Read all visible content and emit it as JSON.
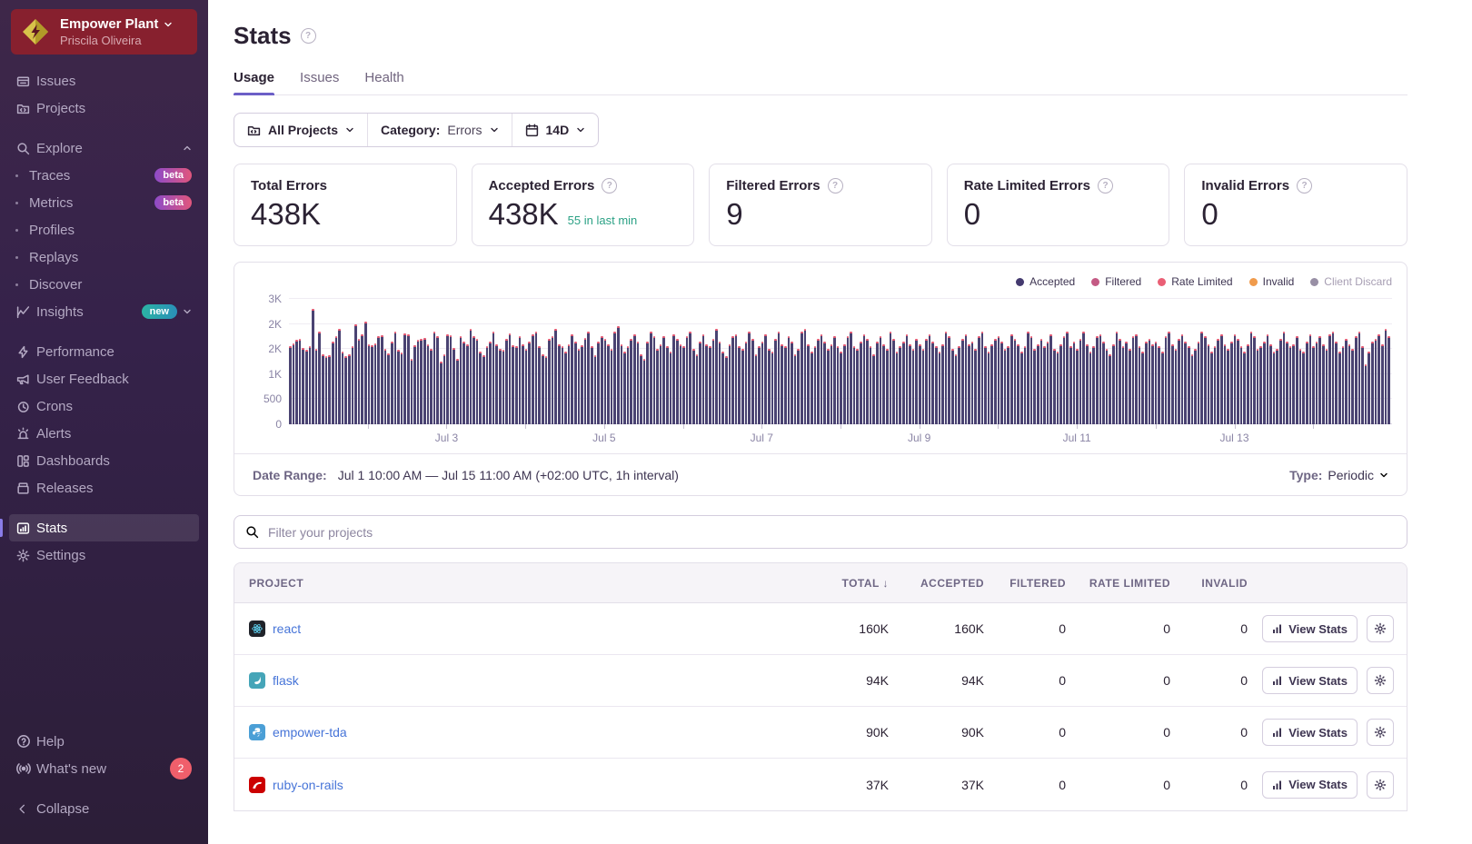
{
  "page": {
    "title": "Stats"
  },
  "sidebar": {
    "org": {
      "name": "Empower Plant",
      "user": "Priscila Oliveira"
    },
    "primary": [
      {
        "label": "Issues"
      },
      {
        "label": "Projects"
      }
    ],
    "explore": {
      "label": "Explore",
      "children": [
        {
          "label": "Traces",
          "badge": "beta"
        },
        {
          "label": "Metrics",
          "badge": "beta"
        },
        {
          "label": "Profiles"
        },
        {
          "label": "Replays"
        },
        {
          "label": "Discover"
        }
      ]
    },
    "insights": {
      "label": "Insights",
      "badge": "new"
    },
    "secondary": [
      {
        "label": "Performance"
      },
      {
        "label": "User Feedback"
      },
      {
        "label": "Crons"
      },
      {
        "label": "Alerts"
      },
      {
        "label": "Dashboards"
      },
      {
        "label": "Releases"
      },
      {
        "label": "Stats"
      },
      {
        "label": "Settings"
      }
    ],
    "footer": {
      "help": "Help",
      "whats_new": "What's new",
      "whats_new_count": "2",
      "collapse": "Collapse"
    }
  },
  "tabs": [
    {
      "label": "Usage"
    },
    {
      "label": "Issues"
    },
    {
      "label": "Health"
    }
  ],
  "filters": {
    "projects": "All Projects",
    "category_label": "Category:",
    "category_value": "Errors",
    "range": "14D"
  },
  "cards": [
    {
      "title": "Total Errors",
      "value": "438K",
      "note": ""
    },
    {
      "title": "Accepted Errors",
      "value": "438K",
      "note": "55 in last min"
    },
    {
      "title": "Filtered Errors",
      "value": "9",
      "note": ""
    },
    {
      "title": "Rate Limited Errors",
      "value": "0",
      "note": ""
    },
    {
      "title": "Invalid Errors",
      "value": "0",
      "note": ""
    }
  ],
  "chart_data": {
    "type": "bar",
    "title": "Errors per hour (stacked usage chart)",
    "xlabel": "",
    "ylabel": "",
    "unit": "errors per 1h interval",
    "ylim": [
      0,
      2500
    ],
    "grid": true,
    "legend_position": "top-right",
    "y_tick_labels": [
      "0",
      "500",
      "1K",
      "2K",
      "2K",
      "3K"
    ],
    "x_labels": [
      {
        "label": "Jul 3",
        "pct": 14.29
      },
      {
        "label": "Jul 5",
        "pct": 28.57
      },
      {
        "label": "Jul 7",
        "pct": 42.86
      },
      {
        "label": "Jul 9",
        "pct": 57.14
      },
      {
        "label": "Jul 11",
        "pct": 71.43
      },
      {
        "label": "Jul 13",
        "pct": 85.71
      }
    ],
    "tick_pcts": [
      7.14,
      14.29,
      21.43,
      28.57,
      35.71,
      42.86,
      50.0,
      57.14,
      64.29,
      71.43,
      78.57,
      85.71,
      92.86
    ],
    "legend": [
      {
        "name": "Accepted",
        "color": "#443a6f",
        "disabled": false
      },
      {
        "name": "Filtered",
        "color": "#c45a84",
        "disabled": false
      },
      {
        "name": "Rate Limited",
        "color": "#ea5f75",
        "disabled": false
      },
      {
        "name": "Invalid",
        "color": "#f09b4c",
        "disabled": false
      },
      {
        "name": "Client Discard",
        "color": "#988fa5",
        "disabled": true
      }
    ],
    "series_name": "Accepted",
    "values": [
      1550,
      1620,
      1680,
      1700,
      1520,
      1480,
      1560,
      2300,
      1500,
      1850,
      1400,
      1350,
      1380,
      1650,
      1750,
      1900,
      1450,
      1350,
      1400,
      1550,
      2000,
      1700,
      1800,
      2050,
      1600,
      1580,
      1620,
      1750,
      1780,
      1500,
      1420,
      1650,
      1850,
      1480,
      1440,
      1820,
      1800,
      1300,
      1580,
      1680,
      1700,
      1720,
      1600,
      1500,
      1850,
      1750,
      1250,
      1400,
      1800,
      1780,
      1520,
      1300,
      1750,
      1650,
      1600,
      1900,
      1750,
      1700,
      1450,
      1380,
      1550,
      1650,
      1850,
      1600,
      1500,
      1480,
      1700,
      1820,
      1580,
      1550,
      1750,
      1600,
      1500,
      1650,
      1800,
      1850,
      1550,
      1400,
      1350,
      1700,
      1750,
      1900,
      1600,
      1550,
      1450,
      1600,
      1800,
      1650,
      1500,
      1580,
      1720,
      1850,
      1550,
      1380,
      1650,
      1750,
      1700,
      1600,
      1500,
      1850,
      1950,
      1600,
      1450,
      1550,
      1700,
      1800,
      1650,
      1400,
      1300,
      1650,
      1850,
      1750,
      1500,
      1600,
      1750,
      1550,
      1450,
      1800,
      1700,
      1600,
      1550,
      1750,
      1850,
      1500,
      1400,
      1650,
      1800,
      1600,
      1550,
      1700,
      1900,
      1650,
      1450,
      1350,
      1600,
      1750,
      1800,
      1550,
      1500,
      1650,
      1850,
      1700,
      1400,
      1550,
      1650,
      1800,
      1500,
      1450,
      1700,
      1850,
      1600,
      1550,
      1750,
      1650,
      1400,
      1500,
      1850,
      1900,
      1600,
      1450,
      1550,
      1700,
      1800,
      1650,
      1500,
      1600,
      1750,
      1550,
      1450,
      1600,
      1750,
      1850,
      1550,
      1500,
      1650,
      1800,
      1700,
      1550,
      1400,
      1650,
      1750,
      1600,
      1500,
      1850,
      1700,
      1450,
      1550,
      1650,
      1800,
      1600,
      1500,
      1700,
      1600,
      1500,
      1700,
      1800,
      1650,
      1550,
      1450,
      1600,
      1850,
      1750,
      1500,
      1400,
      1550,
      1700,
      1800,
      1600,
      1650,
      1500,
      1750,
      1850,
      1550,
      1450,
      1600,
      1700,
      1750,
      1650,
      1500,
      1550,
      1800,
      1700,
      1600,
      1450,
      1550,
      1850,
      1750,
      1500,
      1600,
      1700,
      1550,
      1650,
      1800,
      1500,
      1450,
      1600,
      1750,
      1850,
      1550,
      1650,
      1500,
      1700,
      1850,
      1600,
      1450,
      1550,
      1750,
      1800,
      1650,
      1500,
      1400,
      1600,
      1850,
      1700,
      1550,
      1650,
      1500,
      1750,
      1800,
      1550,
      1450,
      1650,
      1700,
      1600,
      1650,
      1550,
      1450,
      1750,
      1850,
      1600,
      1500,
      1700,
      1800,
      1650,
      1550,
      1400,
      1500,
      1650,
      1850,
      1750,
      1600,
      1450,
      1550,
      1700,
      1800,
      1600,
      1500,
      1650,
      1800,
      1700,
      1550,
      1450,
      1600,
      1850,
      1750,
      1500,
      1550,
      1650,
      1800,
      1600,
      1450,
      1500,
      1700,
      1850,
      1650,
      1550,
      1600,
      1750,
      1500,
      1450,
      1650,
      1800,
      1550,
      1650,
      1750,
      1600,
      1500,
      1800,
      1850,
      1650,
      1450,
      1550,
      1700,
      1600,
      1500,
      1750,
      1850,
      1550,
      1200,
      1450,
      1650,
      1700,
      1800,
      1600,
      1900,
      1750
    ]
  },
  "date_bar": {
    "label": "Date Range:",
    "value": "Jul 1 10:00 AM — Jul 15 11:00 AM (+02:00 UTC, 1h interval)",
    "type_label": "Type:",
    "type_value": "Periodic"
  },
  "search": {
    "placeholder": "Filter your projects"
  },
  "table": {
    "columns": [
      "Project",
      "Total",
      "Accepted",
      "Filtered",
      "Rate Limited",
      "Invalid"
    ],
    "sort_icon": "↓",
    "action_label": "View Stats",
    "rows": [
      {
        "project": "react",
        "platform": "react",
        "total": "160K",
        "accepted": "160K",
        "filtered": "0",
        "rate_limited": "0",
        "invalid": "0"
      },
      {
        "project": "flask",
        "platform": "flask",
        "total": "94K",
        "accepted": "94K",
        "filtered": "0",
        "rate_limited": "0",
        "invalid": "0"
      },
      {
        "project": "empower-tda",
        "platform": "python",
        "total": "90K",
        "accepted": "90K",
        "filtered": "0",
        "rate_limited": "0",
        "invalid": "0"
      },
      {
        "project": "ruby-on-rails",
        "platform": "rails",
        "total": "37K",
        "accepted": "37K",
        "filtered": "0",
        "rate_limited": "0",
        "invalid": "0"
      }
    ]
  },
  "colors": {
    "sidebar_bg_top": "#3e2749",
    "sidebar_bg_bottom": "#2c1e38",
    "org_header_bg": "#87202e",
    "accent_purple": "#6c5fc7",
    "link_blue": "#4674d8",
    "teal_note": "#2ba185",
    "bar_fill": "#4a4372",
    "bar_cap": "#e25a73",
    "badge_red": "#f05f6b"
  }
}
